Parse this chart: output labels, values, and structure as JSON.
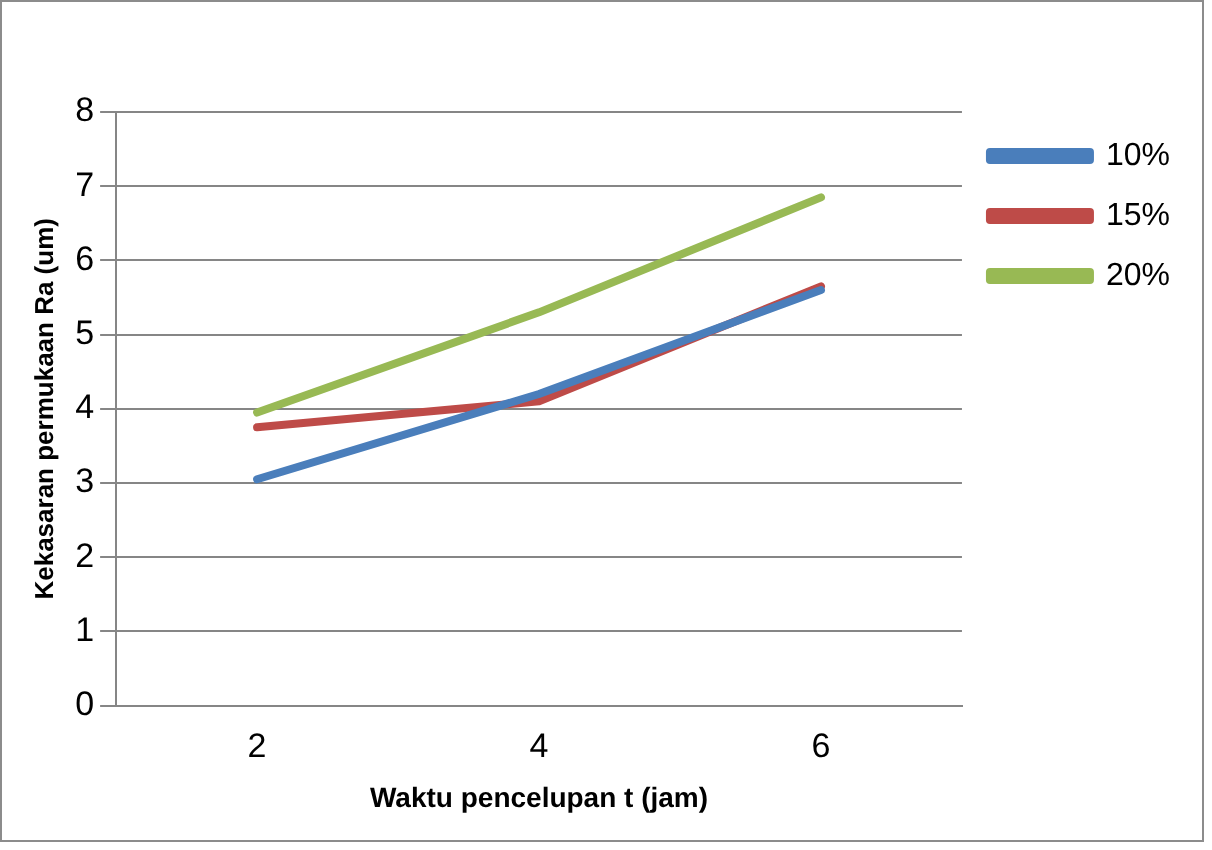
{
  "chart_data": {
    "type": "line",
    "xlabel": "Waktu pencelupan t (jam)",
    "ylabel": "Kekasaran permukaan Ra (um)",
    "categories": [
      "2",
      "4",
      "6"
    ],
    "series": [
      {
        "name": "10%",
        "color": "#4a7ebb",
        "values": [
          3.05,
          4.2,
          5.6
        ]
      },
      {
        "name": "15%",
        "color": "#be4b48",
        "values": [
          3.75,
          4.1,
          5.65
        ]
      },
      {
        "name": "20%",
        "color": "#98b954",
        "values": [
          3.95,
          5.3,
          6.85
        ]
      }
    ],
    "ylim": [
      0,
      8
    ],
    "yticks": [
      0,
      1,
      2,
      3,
      4,
      5,
      6,
      7,
      8
    ],
    "grid": "y",
    "legend": "right",
    "marker": "none",
    "line_style": "solid"
  }
}
